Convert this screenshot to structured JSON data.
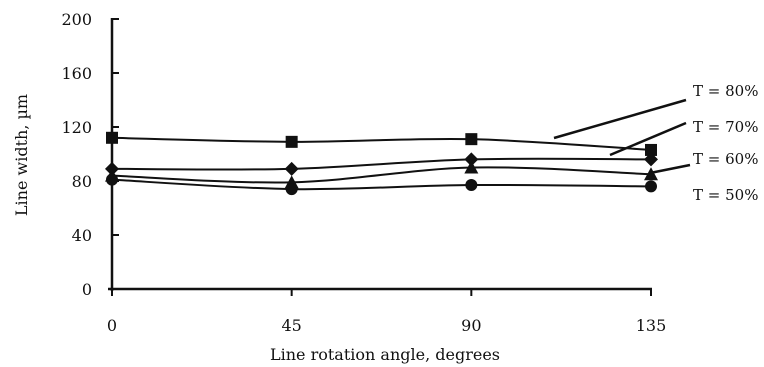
{
  "chart_data": {
    "type": "line",
    "title": "",
    "xlabel": "Line rotation angle, degrees",
    "ylabel": "Line width, µm",
    "x": [
      0,
      45,
      90,
      135
    ],
    "xlim": [
      0,
      135
    ],
    "ylim": [
      0,
      200
    ],
    "x_ticks": [
      "0",
      "45",
      "90",
      "135"
    ],
    "y_ticks": [
      "0",
      "40",
      "80",
      "120",
      "160",
      "200"
    ],
    "grid": false,
    "series": [
      {
        "name": "T = 80%",
        "marker": "square",
        "values": [
          112,
          109,
          111,
          103
        ]
      },
      {
        "name": "T = 70%",
        "marker": "diamond",
        "values": [
          89,
          89,
          96,
          96
        ]
      },
      {
        "name": "T = 60%",
        "marker": "triangle",
        "values": [
          84,
          79,
          90,
          85
        ]
      },
      {
        "name": "T = 50%",
        "marker": "circle",
        "values": [
          81,
          74,
          77,
          76
        ]
      }
    ],
    "colors": {
      "line": "#111111",
      "marker": "#111111"
    }
  }
}
